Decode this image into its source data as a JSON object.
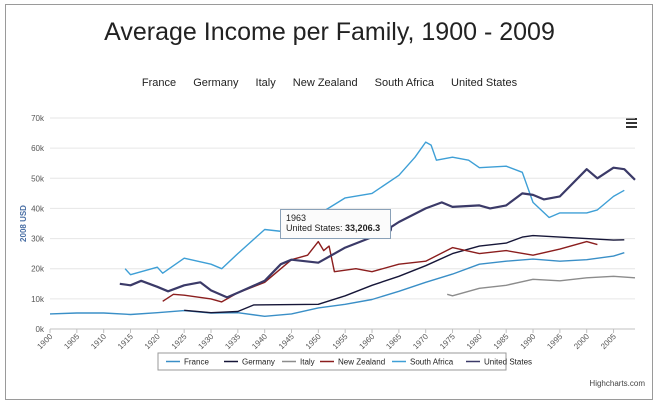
{
  "title": "Average Income per Family, 1900 - 2009",
  "credits": "Highcharts.com",
  "legend_top": [
    "France",
    "Germany",
    "Italy",
    "New Zealand",
    "South Africa",
    "United States"
  ],
  "tooltip": {
    "year": "1963",
    "label": "United States:",
    "value": "33,206.3"
  },
  "chart_data": {
    "type": "line",
    "title": "Average Income per Family, 1900 - 2009",
    "ylabel": "2008 USD",
    "xlim": [
      1900,
      2009
    ],
    "ylim": [
      0,
      70000
    ],
    "xticks": [
      "1900",
      "1905",
      "1910",
      "1915",
      "1920",
      "1925",
      "1930",
      "1935",
      "1940",
      "1945",
      "1950",
      "1955",
      "1960",
      "1965",
      "1970",
      "1975",
      "1980",
      "1985",
      "1990",
      "1995",
      "2000",
      "2005"
    ],
    "yticks": [
      "0k",
      "10k",
      "20k",
      "30k",
      "40k",
      "50k",
      "60k",
      "70k"
    ],
    "grid": true,
    "legend_position": "bottom",
    "series": [
      {
        "name": "France",
        "color": "#3a8fc7",
        "points": [
          [
            1900,
            5000
          ],
          [
            1905,
            5300
          ],
          [
            1910,
            5300
          ],
          [
            1915,
            4800
          ],
          [
            1920,
            5400
          ],
          [
            1925,
            6100
          ],
          [
            1930,
            5300
          ],
          [
            1935,
            5400
          ],
          [
            1940,
            4200
          ],
          [
            1945,
            5000
          ],
          [
            1950,
            7000
          ],
          [
            1955,
            8200
          ],
          [
            1960,
            9800
          ],
          [
            1965,
            12500
          ],
          [
            1970,
            15500
          ],
          [
            1975,
            18200
          ],
          [
            1980,
            21500
          ],
          [
            1985,
            22500
          ],
          [
            1990,
            23200
          ],
          [
            1995,
            22500
          ],
          [
            2000,
            23000
          ],
          [
            2005,
            24200
          ],
          [
            2007,
            25300
          ]
        ]
      },
      {
        "name": "Germany",
        "color": "#161638",
        "points": [
          [
            1925,
            6200
          ],
          [
            1930,
            5400
          ],
          [
            1935,
            5800
          ],
          [
            1938,
            8000
          ],
          [
            1950,
            8200
          ],
          [
            1955,
            11000
          ],
          [
            1960,
            14500
          ],
          [
            1965,
            17500
          ],
          [
            1970,
            21000
          ],
          [
            1975,
            25000
          ],
          [
            1980,
            27500
          ],
          [
            1985,
            28500
          ],
          [
            1988,
            30500
          ],
          [
            1990,
            31000
          ],
          [
            1995,
            30500
          ],
          [
            2000,
            30000
          ],
          [
            2005,
            29500
          ],
          [
            2007,
            29600
          ]
        ]
      },
      {
        "name": "Italy",
        "color": "#8c8c8c",
        "points": [
          [
            1974,
            11500
          ],
          [
            1975,
            11000
          ],
          [
            1980,
            13500
          ],
          [
            1985,
            14500
          ],
          [
            1990,
            16500
          ],
          [
            1995,
            16000
          ],
          [
            2000,
            17000
          ],
          [
            2005,
            17500
          ],
          [
            2009,
            17000
          ]
        ]
      },
      {
        "name": "New Zealand",
        "color": "#8b1e1e",
        "points": [
          [
            1921,
            9200
          ],
          [
            1923,
            11500
          ],
          [
            1925,
            11200
          ],
          [
            1930,
            10000
          ],
          [
            1932,
            9000
          ],
          [
            1935,
            12000
          ],
          [
            1940,
            15500
          ],
          [
            1945,
            23000
          ],
          [
            1948,
            24500
          ],
          [
            1950,
            29000
          ],
          [
            1951,
            26000
          ],
          [
            1952,
            27500
          ],
          [
            1953,
            19000
          ],
          [
            1957,
            20000
          ],
          [
            1960,
            19000
          ],
          [
            1965,
            21500
          ],
          [
            1970,
            22500
          ],
          [
            1975,
            27000
          ],
          [
            1980,
            25000
          ],
          [
            1985,
            26000
          ],
          [
            1990,
            24500
          ],
          [
            1995,
            26500
          ],
          [
            2000,
            29000
          ],
          [
            2002,
            28000
          ]
        ]
      },
      {
        "name": "South Africa",
        "color": "#3e9fd6",
        "points": [
          [
            1914,
            20000
          ],
          [
            1915,
            18000
          ],
          [
            1920,
            20500
          ],
          [
            1921,
            18500
          ],
          [
            1925,
            23500
          ],
          [
            1930,
            21500
          ],
          [
            1932,
            20000
          ],
          [
            1935,
            25000
          ],
          [
            1940,
            33000
          ],
          [
            1945,
            32000
          ],
          [
            1950,
            38000
          ],
          [
            1955,
            43500
          ],
          [
            1960,
            45000
          ],
          [
            1965,
            51000
          ],
          [
            1968,
            57000
          ],
          [
            1970,
            62000
          ],
          [
            1971,
            61000
          ],
          [
            1972,
            56000
          ],
          [
            1975,
            57000
          ],
          [
            1978,
            56000
          ],
          [
            1980,
            53500
          ],
          [
            1985,
            54000
          ],
          [
            1988,
            52000
          ],
          [
            1990,
            42000
          ],
          [
            1993,
            37000
          ],
          [
            1995,
            38500
          ],
          [
            2000,
            38500
          ],
          [
            2002,
            39500
          ],
          [
            2005,
            44000
          ],
          [
            2007,
            46000
          ]
        ]
      },
      {
        "name": "United States",
        "color": "#3b3a68",
        "points": [
          [
            1913,
            15000
          ],
          [
            1915,
            14500
          ],
          [
            1917,
            16000
          ],
          [
            1920,
            14000
          ],
          [
            1922,
            12500
          ],
          [
            1925,
            14500
          ],
          [
            1928,
            15500
          ],
          [
            1930,
            12800
          ],
          [
            1933,
            10500
          ],
          [
            1935,
            12000
          ],
          [
            1940,
            16000
          ],
          [
            1943,
            21500
          ],
          [
            1945,
            23000
          ],
          [
            1950,
            22000
          ],
          [
            1955,
            27000
          ],
          [
            1960,
            30500
          ],
          [
            1963,
            33206
          ],
          [
            1965,
            35500
          ],
          [
            1970,
            40000
          ],
          [
            1973,
            42000
          ],
          [
            1975,
            40500
          ],
          [
            1980,
            41000
          ],
          [
            1982,
            40000
          ],
          [
            1985,
            41000
          ],
          [
            1988,
            45000
          ],
          [
            1990,
            44500
          ],
          [
            1992,
            43000
          ],
          [
            1995,
            44000
          ],
          [
            2000,
            53000
          ],
          [
            2002,
            50000
          ],
          [
            2005,
            53500
          ],
          [
            2007,
            53000
          ],
          [
            2009,
            49500
          ]
        ]
      }
    ]
  }
}
